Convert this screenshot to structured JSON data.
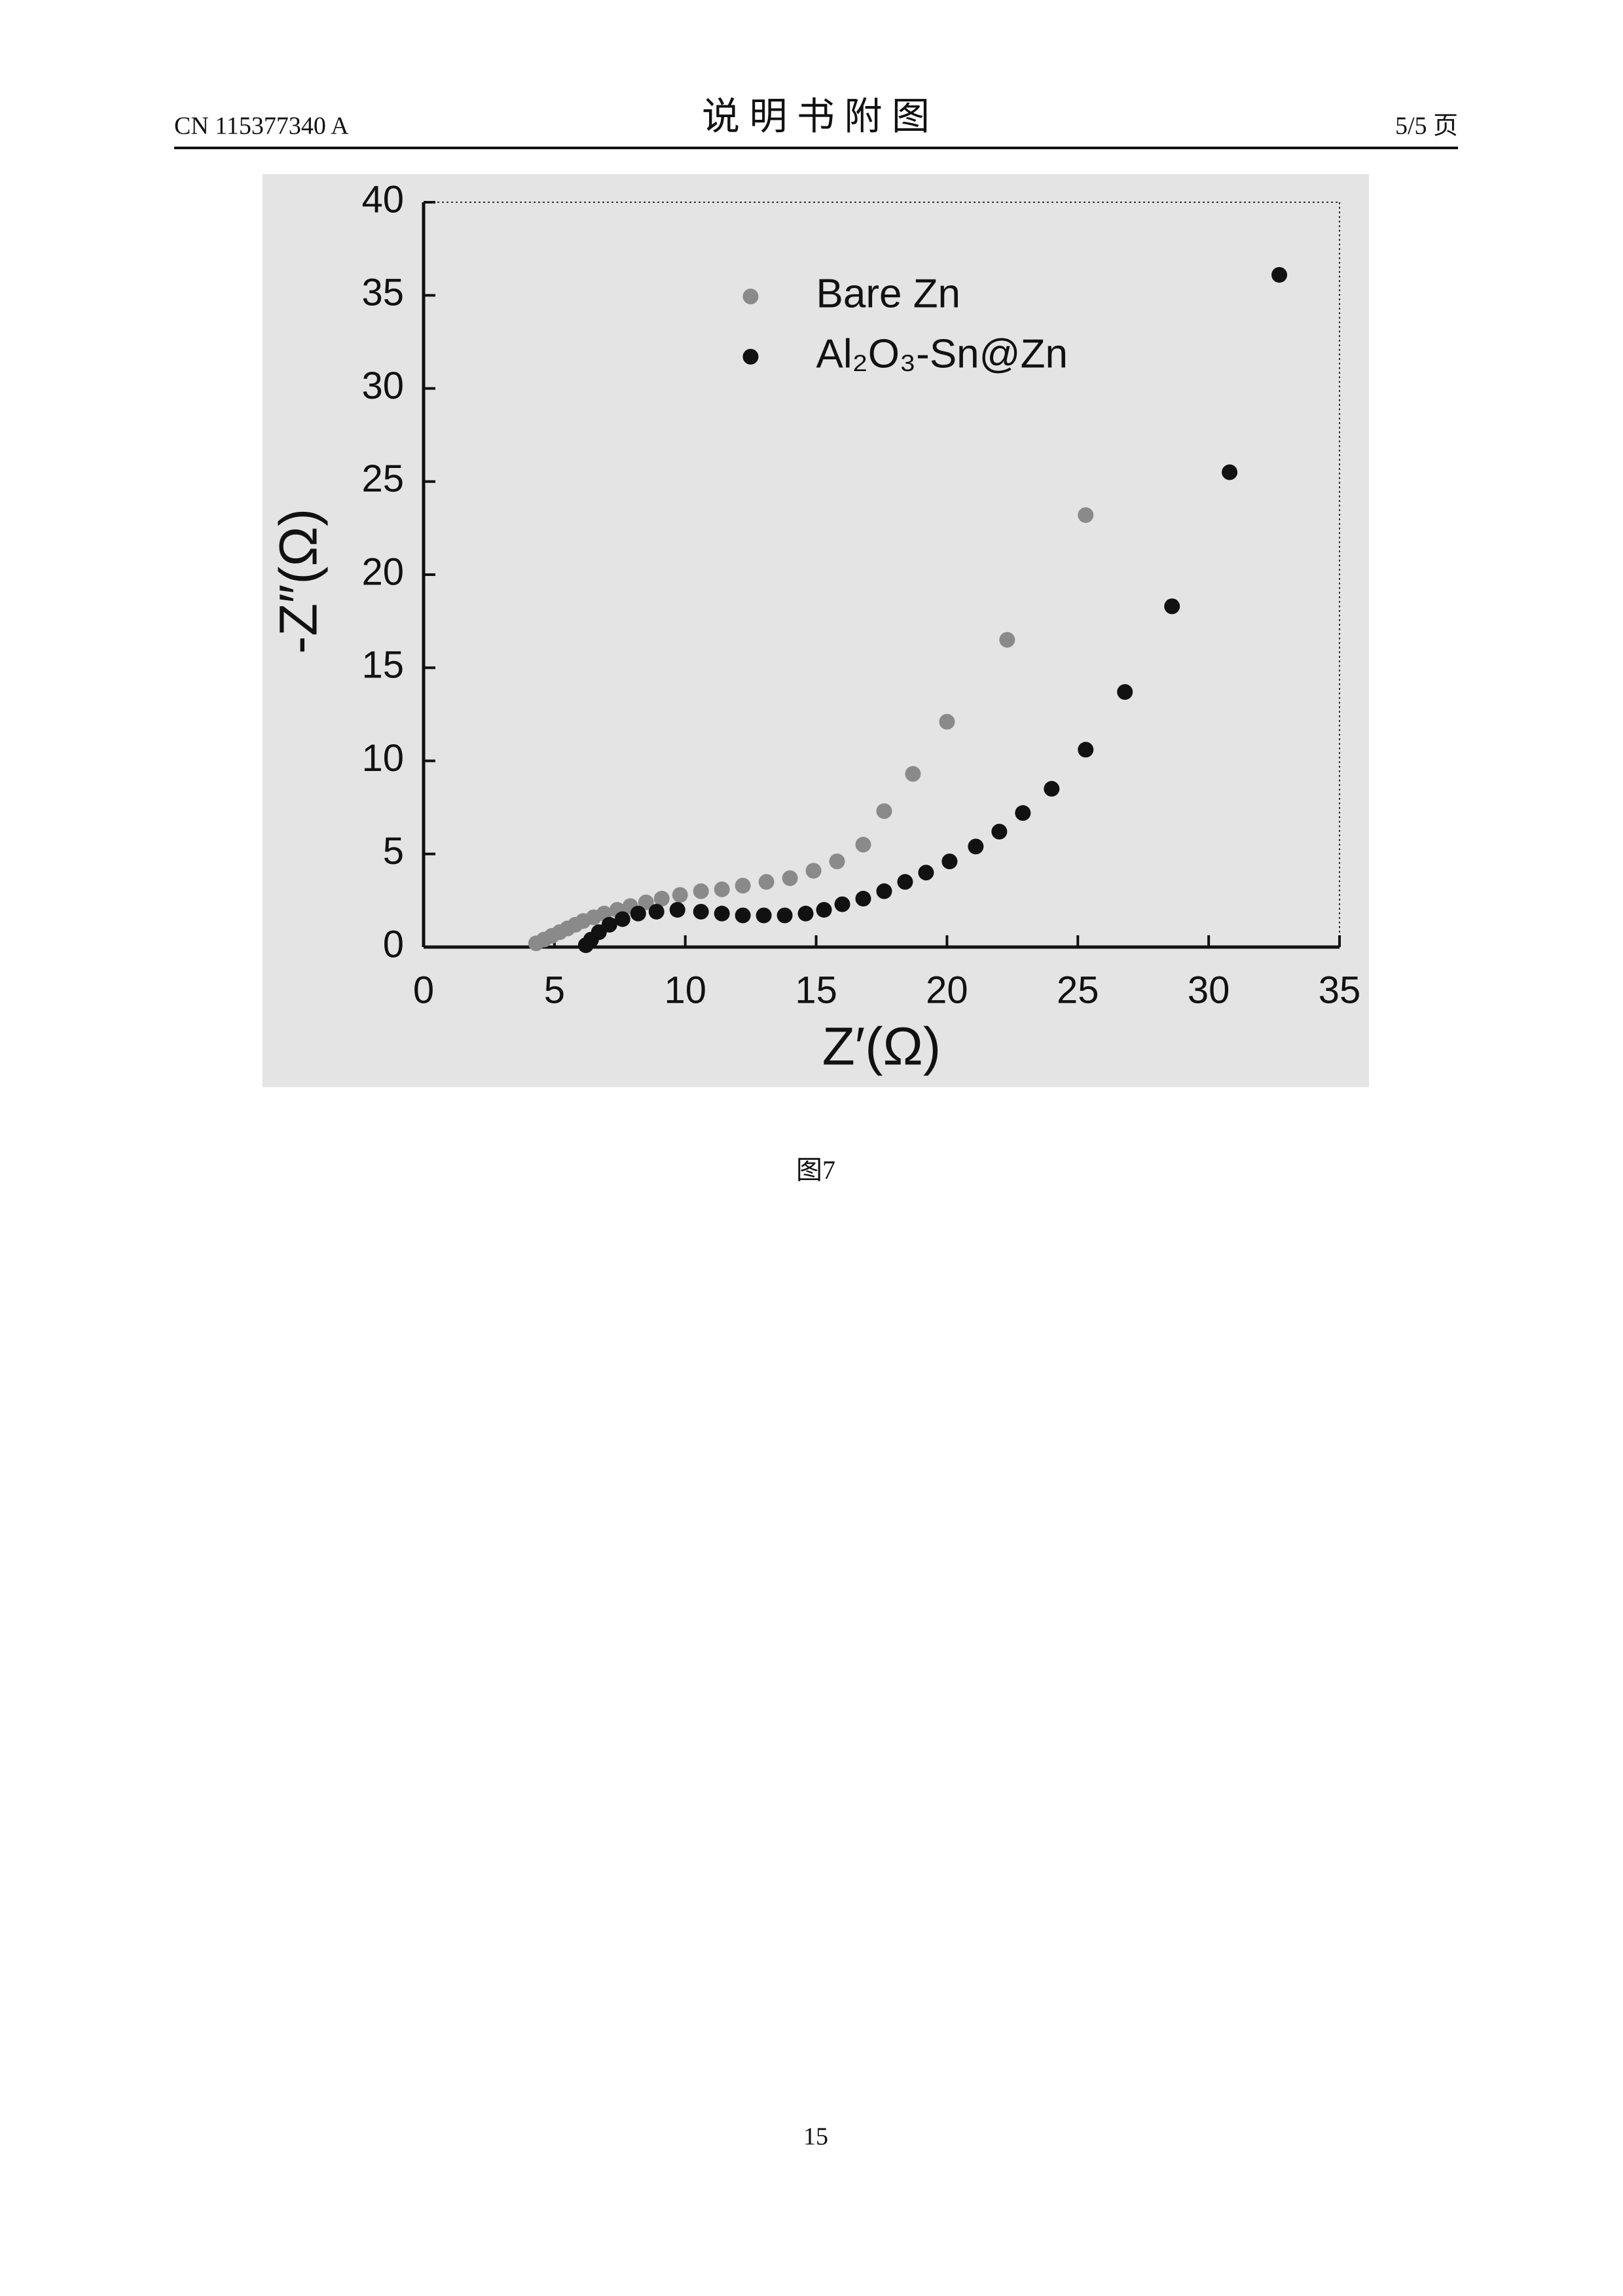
{
  "header": {
    "doc_number": "CN 115377340 A",
    "title": "说 明 书 附 图",
    "page": "5/5 页"
  },
  "chart_data": {
    "type": "scatter",
    "xlabel": "Z′(Ω)",
    "ylabel": "-Z″(Ω)",
    "xlim": [
      0,
      35
    ],
    "xticks": [
      0,
      5,
      10,
      15,
      20,
      25,
      30,
      35
    ],
    "ylim": [
      0,
      40
    ],
    "yticks": [
      0,
      5,
      10,
      15,
      20,
      25,
      30,
      35,
      40
    ],
    "legend": "upper center",
    "series": [
      {
        "name": "Bare Zn",
        "color": "#8a8a8a",
        "x": [
          4.3,
          4.6,
          4.9,
          5.2,
          5.5,
          5.8,
          6.1,
          6.5,
          6.9,
          7.4,
          7.9,
          8.5,
          9.1,
          9.8,
          10.6,
          11.4,
          12.2,
          13.1,
          14.0,
          14.9,
          15.8,
          16.8,
          17.6,
          18.7,
          20.0,
          22.3,
          25.3
        ],
        "values": [
          0.2,
          0.4,
          0.6,
          0.8,
          1.0,
          1.2,
          1.4,
          1.6,
          1.8,
          2.0,
          2.2,
          2.4,
          2.6,
          2.8,
          3.0,
          3.1,
          3.3,
          3.5,
          3.7,
          4.1,
          4.6,
          5.5,
          7.3,
          9.3,
          12.1,
          16.5,
          23.2
        ]
      },
      {
        "name": "Al₂O₃-Sn@Zn",
        "color": "#111111",
        "x": [
          6.2,
          6.4,
          6.7,
          7.1,
          7.6,
          8.2,
          8.9,
          9.7,
          10.6,
          11.4,
          12.2,
          13.0,
          13.8,
          14.6,
          15.3,
          16.0,
          16.8,
          17.6,
          18.4,
          19.2,
          20.1,
          21.1,
          22.0,
          22.9,
          24.0,
          25.3,
          26.8,
          28.6,
          30.8,
          32.7
        ],
        "values": [
          0.1,
          0.4,
          0.8,
          1.2,
          1.5,
          1.8,
          1.9,
          2.0,
          1.9,
          1.8,
          1.7,
          1.7,
          1.7,
          1.8,
          2.0,
          2.3,
          2.6,
          3.0,
          3.5,
          4.0,
          4.6,
          5.4,
          6.2,
          7.2,
          8.5,
          10.6,
          13.7,
          18.3,
          25.5,
          36.1
        ]
      }
    ]
  },
  "caption": "图7",
  "page_number": "15"
}
